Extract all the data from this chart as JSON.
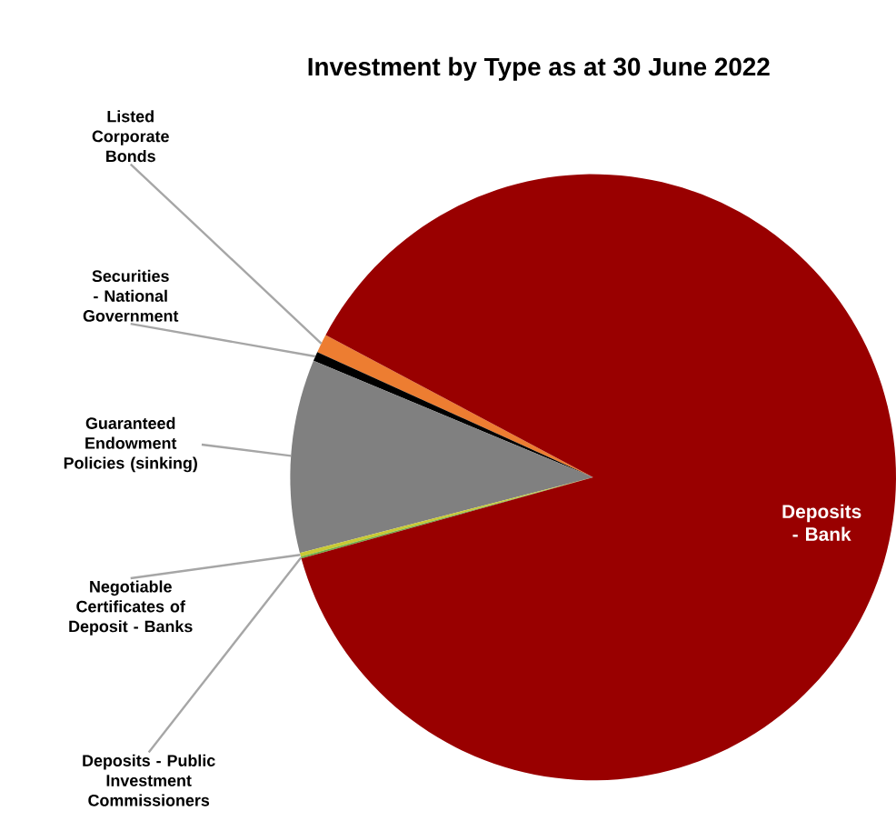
{
  "chart_data": {
    "type": "pie",
    "title": "Investment by Type as at 30 June 2022",
    "categories": [
      "Listed Corporate Bonds",
      "Securities - National Government",
      "Guaranteed Endowment Policies (sinking)",
      "Negotiable Certificates of Deposit - Banks",
      "Deposits - Public Investment Commissioners",
      "Deposits - Bank"
    ],
    "values": [
      1.0,
      0.5,
      10.3,
      0.2,
      0.1,
      87.9
    ],
    "colors": [
      "#ed7d31",
      "#000000",
      "#808080",
      "#c9c934",
      "#70ad47",
      "#990000"
    ]
  }
}
